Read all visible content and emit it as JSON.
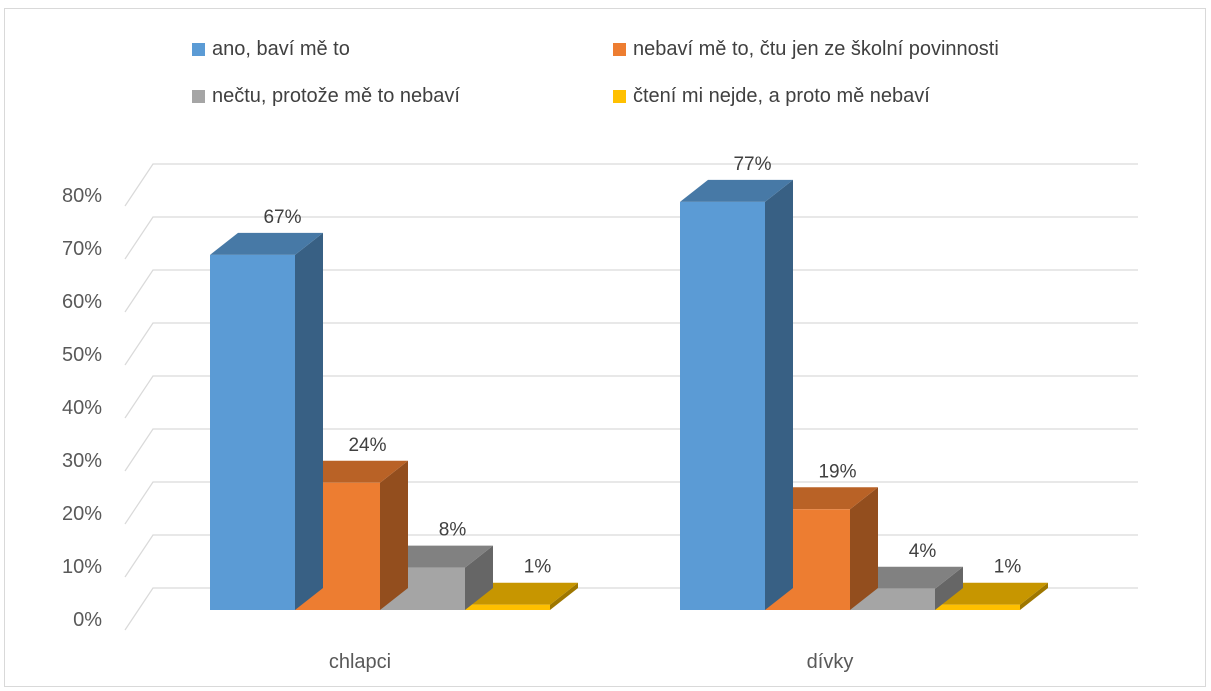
{
  "chart_data": {
    "type": "bar",
    "three_d": true,
    "categories": [
      "chlapci",
      "dívky"
    ],
    "series": [
      {
        "name": "ano, baví mě to",
        "values": [
          67,
          77
        ],
        "labels": [
          "67%",
          "77%"
        ]
      },
      {
        "name": "nebaví mě to, čtu jen ze školní povinnosti",
        "values": [
          24,
          19
        ],
        "labels": [
          "24%",
          "19%"
        ]
      },
      {
        "name": "nečtu, protože mě to nebaví",
        "values": [
          8,
          4
        ],
        "labels": [
          "8%",
          "4%"
        ]
      },
      {
        "name": "čtení mi nejde, a proto mě nebaví",
        "values": [
          1,
          1
        ],
        "labels": [
          "1%",
          "1%"
        ]
      }
    ],
    "ylim": [
      0,
      80
    ],
    "yticks": [
      "0%",
      "10%",
      "20%",
      "30%",
      "40%",
      "50%",
      "60%",
      "70%",
      "80%"
    ],
    "title": "",
    "xlabel": "",
    "ylabel": "",
    "grid": true,
    "legend_position": "top",
    "colors": {
      "series": [
        "#5b9bd5",
        "#ed7d31",
        "#a5a5a5",
        "#ffc000"
      ],
      "gridline": "#d9d9d9",
      "tick_text": "#595959"
    }
  }
}
